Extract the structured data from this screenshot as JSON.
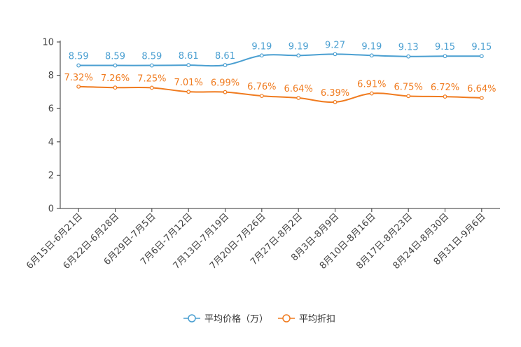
{
  "chart_data": {
    "type": "line",
    "title": "",
    "xlabel": "",
    "ylabel": "",
    "ylim": [
      0,
      10
    ],
    "yticks": [
      0,
      2,
      4,
      6,
      8,
      10
    ],
    "categories": [
      "6月15日-6月21日",
      "6月22日-6月28日",
      "6月29日-7月5日",
      "7月6日-7月12日",
      "7月13日-7月19日",
      "7月20日-7月26日",
      "7月27日-8月2日",
      "8月3日-8月9日",
      "8月10日-8月16日",
      "8月17日-8月23日",
      "8月24日-8月30日",
      "8月31日-9月6日"
    ],
    "series": [
      {
        "name": "平均价格（万）",
        "color": "#4a9fd1",
        "values": [
          8.59,
          8.59,
          8.59,
          8.61,
          8.61,
          9.19,
          9.19,
          9.27,
          9.19,
          9.13,
          9.15,
          9.15
        ],
        "labels": [
          "8.59",
          "8.59",
          "8.59",
          "8.61",
          "8.61",
          "9.19",
          "9.19",
          "9.27",
          "9.19",
          "9.13",
          "9.15",
          "9.15"
        ]
      },
      {
        "name": "平均折扣",
        "color": "#f07b1f",
        "values": [
          7.32,
          7.26,
          7.25,
          7.01,
          6.99,
          6.76,
          6.64,
          6.39,
          6.91,
          6.75,
          6.72,
          6.64
        ],
        "labels": [
          "7.32%",
          "7.26%",
          "7.25%",
          "7.01%",
          "6.99%",
          "6.76%",
          "6.64%",
          "6.39%",
          "6.91%",
          "6.75%",
          "6.72%",
          "6.64%"
        ]
      }
    ],
    "grid": false,
    "legend_position": "bottom-center"
  }
}
